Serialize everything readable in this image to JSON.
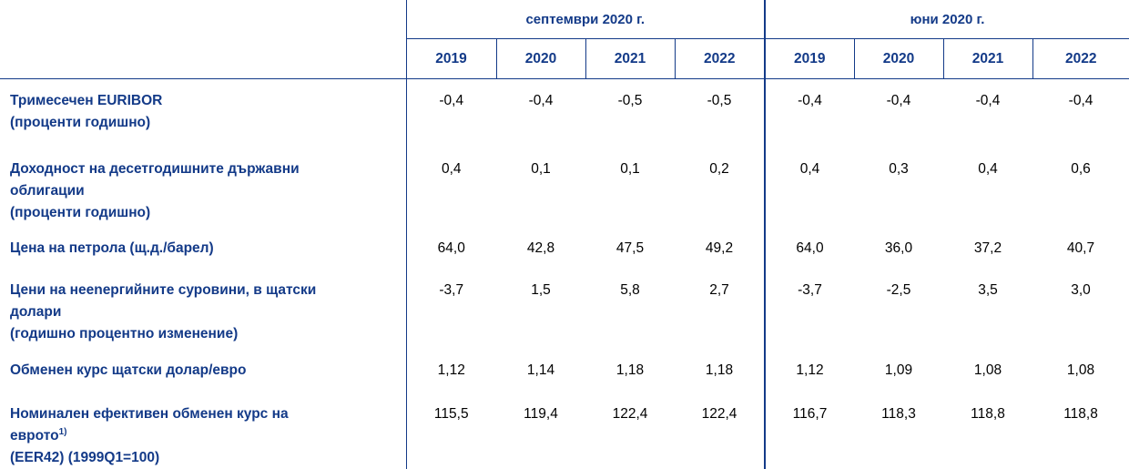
{
  "header": {
    "group_sept": "септември 2020 г.",
    "group_june": "юни 2020 г.",
    "years": [
      "2019",
      "2020",
      "2021",
      "2022",
      "2019",
      "2020",
      "2021",
      "2022"
    ]
  },
  "rows": [
    {
      "label_lines": [
        "Тримесечен EURIBOR",
        "(проценти годишно)"
      ],
      "values": [
        "-0,4",
        "-0,4",
        "-0,5",
        "-0,5",
        "-0,4",
        "-0,4",
        "-0,4",
        "-0,4"
      ]
    },
    {
      "label_lines": [
        "Доходност на десетгодишните държавни",
        "облигации",
        "(проценти годишно)"
      ],
      "values": [
        "0,4",
        "0,1",
        "0,1",
        "0,2",
        "0,4",
        "0,3",
        "0,4",
        "0,6"
      ]
    },
    {
      "label_lines": [
        "Цена на петрола (щ.д./барел)"
      ],
      "values": [
        "64,0",
        "42,8",
        "47,5",
        "49,2",
        "64,0",
        "36,0",
        "37,2",
        "40,7"
      ]
    },
    {
      "label_lines": [
        "Цени на нееnергийните суровини, в щатски",
        "долари",
        "(годишно процентно изменение)"
      ],
      "values": [
        "-3,7",
        "1,5",
        "5,8",
        "2,7",
        "-3,7",
        "-2,5",
        "3,5",
        "3,0"
      ]
    },
    {
      "label_lines": [
        "Обменен курс щатски долар/евро"
      ],
      "values": [
        "1,12",
        "1,14",
        "1,18",
        "1,18",
        "1,12",
        "1,09",
        "1,08",
        "1,08"
      ]
    },
    {
      "label_lines": [
        "Номинален ефективен обменен курс на",
        "еврото",
        "(EER42) (1999Q1=100)"
      ],
      "footnote": "1)",
      "values": [
        "115,5",
        "119,4",
        "122,4",
        "122,4",
        "116,7",
        "118,3",
        "118,8",
        "118,8"
      ]
    }
  ]
}
